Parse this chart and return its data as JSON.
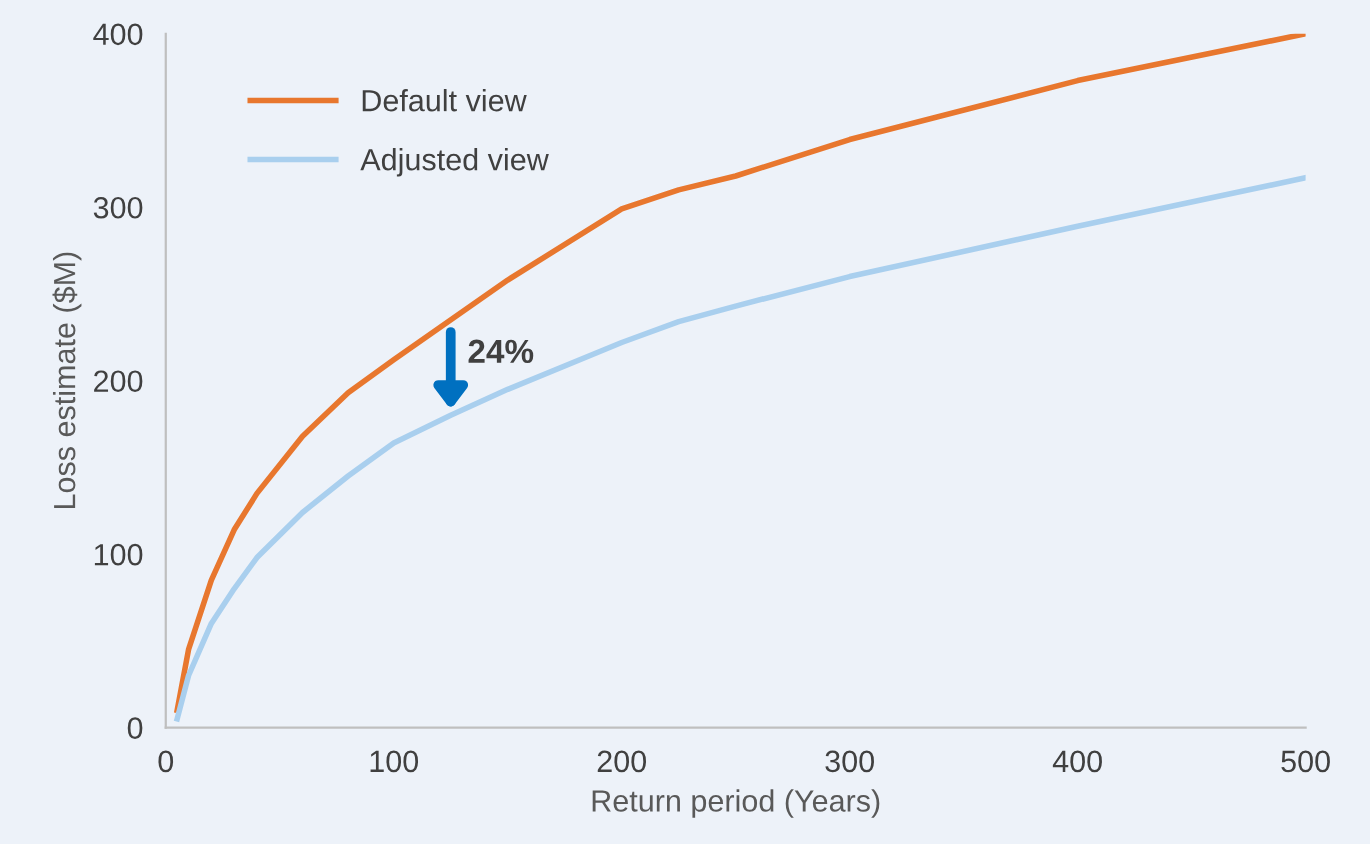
{
  "chart_data": {
    "type": "line",
    "xlabel": "Return period (Years)",
    "ylabel": "Loss estimate ($M)",
    "series": [
      {
        "name": "Default view",
        "color": "#e8772e",
        "x": [
          5,
          10,
          20,
          30,
          40,
          60,
          80,
          100,
          150,
          200,
          225,
          250,
          300,
          400,
          500
        ],
        "values": [
          10,
          45,
          85,
          114,
          135,
          168,
          193,
          212,
          258,
          299,
          310,
          318,
          339,
          373,
          400
        ]
      },
      {
        "name": "Adjusted view",
        "color": "#a9cfee",
        "x": [
          5,
          10,
          20,
          30,
          40,
          60,
          80,
          100,
          125,
          150,
          200,
          225,
          250,
          300,
          400,
          500
        ],
        "values": [
          5,
          30,
          60,
          80,
          98,
          124,
          145,
          164,
          180,
          195,
          222,
          234,
          243,
          260,
          289,
          317
        ]
      }
    ],
    "xlim": [
      0,
      500
    ],
    "xticks": [
      0,
      100,
      200,
      300,
      400,
      500
    ],
    "ylim": [
      0,
      400
    ],
    "yticks": [
      0,
      100,
      200,
      300,
      400
    ],
    "annotations": [
      {
        "text": "24%",
        "x": 125,
        "y": 180
      }
    ],
    "grid": false,
    "legend": "top left",
    "marker": "none",
    "line_style": "solid"
  }
}
